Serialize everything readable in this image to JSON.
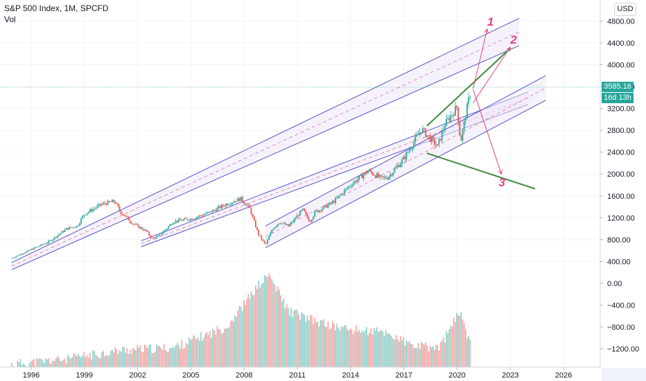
{
  "header": {
    "title": "S&P 500 Index, 1M, SPCFD",
    "volume_label": "Vol"
  },
  "currency_button": "USD",
  "price_tag": {
    "price": "3585.16",
    "countdown": "16d 13h",
    "color": "#26a69a"
  },
  "colors": {
    "up": "#26a69a",
    "down": "#ef5350",
    "channel": "#5b4fc8",
    "channel_fill": "#ece8f8",
    "trend_green": "#3d8b3d",
    "annotation_pink": "#e0457b"
  },
  "annotations": [
    {
      "label": "1"
    },
    {
      "label": "2"
    },
    {
      "label": "3"
    }
  ],
  "chart_data": {
    "type": "candlestick",
    "title": "S&P 500 Index, 1M, SPCFD",
    "y_axis": {
      "ticks": [
        4800,
        4400,
        4000,
        3600,
        3200,
        2800,
        2400,
        2000,
        1600,
        1200,
        800,
        400
      ],
      "tick_labels": [
        "4800.00",
        "4400.00",
        "4000.00",
        "3600.00",
        "3200.00",
        "2800.00",
        "2400.00",
        "2000.00",
        "1600.00",
        "1200.00",
        "800.00",
        "400.00"
      ]
    },
    "volume_axis": {
      "ticks": [
        0,
        -400,
        -800,
        -1200
      ],
      "tick_labels": [
        "0.00",
        "−400.00",
        "−800.00",
        "−1200.00"
      ]
    },
    "x_axis": {
      "tick_labels": [
        "1996",
        "1999",
        "2002",
        "2005",
        "2008",
        "2011",
        "2014",
        "2017",
        "2020",
        "2023",
        "2026"
      ],
      "tick_years": [
        1996,
        1999,
        2002,
        2005,
        2008,
        2011,
        2014,
        2017,
        2020,
        2023,
        2026
      ]
    },
    "price_keypoints": [
      {
        "date": 1994.9,
        "close": 460
      },
      {
        "date": 1996.0,
        "close": 620
      },
      {
        "date": 1997.0,
        "close": 760
      },
      {
        "date": 1998.0,
        "close": 1000
      },
      {
        "date": 1998.6,
        "close": 1050
      },
      {
        "date": 1999.0,
        "close": 1270
      },
      {
        "date": 2000.0,
        "close": 1450
      },
      {
        "date": 2000.7,
        "close": 1500
      },
      {
        "date": 2001.0,
        "close": 1320
      },
      {
        "date": 2001.7,
        "close": 1100
      },
      {
        "date": 2002.5,
        "close": 950
      },
      {
        "date": 2002.8,
        "close": 820
      },
      {
        "date": 2003.2,
        "close": 860
      },
      {
        "date": 2004.0,
        "close": 1130
      },
      {
        "date": 2005.0,
        "close": 1180
      },
      {
        "date": 2006.0,
        "close": 1290
      },
      {
        "date": 2007.0,
        "close": 1450
      },
      {
        "date": 2007.8,
        "close": 1550
      },
      {
        "date": 2008.3,
        "close": 1380
      },
      {
        "date": 2008.8,
        "close": 900
      },
      {
        "date": 2009.2,
        "close": 700
      },
      {
        "date": 2009.6,
        "close": 1000
      },
      {
        "date": 2010.0,
        "close": 1120
      },
      {
        "date": 2010.5,
        "close": 1040
      },
      {
        "date": 2011.3,
        "close": 1350
      },
      {
        "date": 2011.7,
        "close": 1130
      },
      {
        "date": 2012.0,
        "close": 1300
      },
      {
        "date": 2013.0,
        "close": 1480
      },
      {
        "date": 2014.0,
        "close": 1800
      },
      {
        "date": 2015.0,
        "close": 2060
      },
      {
        "date": 2015.7,
        "close": 1920
      },
      {
        "date": 2016.1,
        "close": 1940
      },
      {
        "date": 2017.0,
        "close": 2280
      },
      {
        "date": 2018.0,
        "close": 2820
      },
      {
        "date": 2018.9,
        "close": 2500
      },
      {
        "date": 2019.3,
        "close": 2900
      },
      {
        "date": 2020.0,
        "close": 3230
      },
      {
        "date": 2020.2,
        "close": 2580
      },
      {
        "date": 2020.5,
        "close": 3100
      },
      {
        "date": 2020.8,
        "close": 3585.16
      }
    ],
    "volume_keypoints": [
      {
        "date": 1995,
        "value": -1480
      },
      {
        "date": 1998,
        "value": -1390
      },
      {
        "date": 2001,
        "value": -1230
      },
      {
        "date": 2004,
        "value": -1180
      },
      {
        "date": 2007,
        "value": -800
      },
      {
        "date": 2008.8,
        "value": -40
      },
      {
        "date": 2009.4,
        "value": 160
      },
      {
        "date": 2010.5,
        "value": -500
      },
      {
        "date": 2012,
        "value": -700
      },
      {
        "date": 2014,
        "value": -850
      },
      {
        "date": 2016,
        "value": -900
      },
      {
        "date": 2017.5,
        "value": -1150
      },
      {
        "date": 2019,
        "value": -1180
      },
      {
        "date": 2020.2,
        "value": -500
      },
      {
        "date": 2020.8,
        "value": -1200
      }
    ],
    "drawings": {
      "channels": [
        {
          "start": [
            1994.9,
            380
          ],
          "end": [
            2023.5,
            4850
          ],
          "lower_start": [
            1994.9,
            250
          ],
          "lower_end": [
            2023.5,
            4350
          ]
        },
        {
          "start": [
            2002.2,
            780
          ],
          "end": [
            2024.0,
            3500
          ],
          "lower_start": [
            2002.2,
            670
          ],
          "lower_end": [
            2024.0,
            3270
          ]
        },
        {
          "start": [
            2009.2,
            1050
          ],
          "end": [
            2025.0,
            3800
          ],
          "lower_start": [
            2009.2,
            650
          ],
          "lower_end": [
            2025.0,
            3350
          ]
        }
      ],
      "green_lines": [
        {
          "start": [
            2018.3,
            2880
          ],
          "end": [
            2023.0,
            4300
          ]
        },
        {
          "start": [
            2018.3,
            2380
          ],
          "end": [
            2024.4,
            1730
          ]
        }
      ],
      "arrows": [
        {
          "start": [
            2020.9,
            3560
          ],
          "end": [
            2021.7,
            4650
          ],
          "label_index": 0
        },
        {
          "start": [
            2020.9,
            3300
          ],
          "end": [
            2023.0,
            4320
          ],
          "label_index": 1
        },
        {
          "start": [
            2020.9,
            3550
          ],
          "end": [
            2022.5,
            2000
          ],
          "label_index": 2
        }
      ]
    }
  }
}
